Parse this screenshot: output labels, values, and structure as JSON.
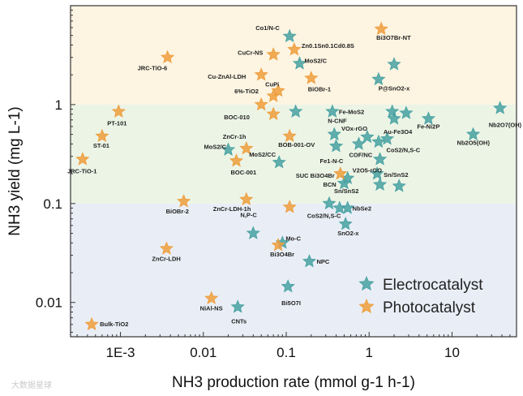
{
  "chart_data": {
    "type": "scatter",
    "xscale": "log",
    "yscale": "log",
    "xlim": [
      0.00025,
      60
    ],
    "ylim": [
      0.0045,
      10
    ],
    "xlabel": "NH3 production rate (mmol g-1 h-1)",
    "ylabel": "NH3 yield (mg L-1)",
    "xticks": [
      {
        "v": 0.001,
        "label": "1E-3"
      },
      {
        "v": 0.01,
        "label": "0.01"
      },
      {
        "v": 0.1,
        "label": "0.1"
      },
      {
        "v": 1,
        "label": "1"
      },
      {
        "v": 10,
        "label": "10"
      }
    ],
    "yticks": [
      {
        "v": 0.01,
        "label": "0.01"
      },
      {
        "v": 0.1,
        "label": "0.1"
      },
      {
        "v": 1,
        "label": "1"
      }
    ],
    "bands": [
      {
        "from": 1,
        "to": 10,
        "color": "#fdf4e1"
      },
      {
        "from": 0.1,
        "to": 1,
        "color": "#ecf4e6"
      },
      {
        "from": 0.0045,
        "to": 0.1,
        "color": "#e9eef6"
      }
    ],
    "legend": {
      "position": "bottom-right",
      "entries": [
        {
          "name": "Electrocatalyst",
          "color": "#47a1a1"
        },
        {
          "name": "Photocatalyst",
          "color": "#ef9d3b"
        }
      ]
    },
    "colors": {
      "electro": "#47a1a1",
      "photo": "#ef9d3b",
      "axis": "#333333",
      "text": "#222222"
    },
    "series": [
      {
        "name": "Electrocatalyst",
        "type": "electro",
        "points": [
          {
            "x": 0.11,
            "y": 4.9,
            "label": "Co1/N-C",
            "ldx": -42,
            "ldy": -8
          },
          {
            "x": 0.145,
            "y": 2.6,
            "label": "MoS2/C",
            "ldx": 6,
            "ldy": -1
          },
          {
            "x": 2.0,
            "y": 2.55
          },
          {
            "x": 1.3,
            "y": 1.8
          },
          {
            "x": 0.13,
            "y": 0.85
          },
          {
            "x": 0.36,
            "y": 0.85,
            "label": "Fe-MoS2",
            "ldx": 8,
            "ldy": 3
          },
          {
            "x": 1.9,
            "y": 0.85,
            "label": "P@SnO2-x",
            "ldx": -17,
            "ldy": -26
          },
          {
            "x": 2.8,
            "y": 0.82
          },
          {
            "x": 2.0,
            "y": 0.72
          },
          {
            "x": 5.2,
            "y": 0.72,
            "label": "Fe-Ni2P",
            "ldx": -14,
            "ldy": 12
          },
          {
            "x": 38,
            "y": 0.92,
            "label": "Nb2O7(OH)",
            "ldx": -14,
            "ldy": 23
          },
          {
            "x": 18,
            "y": 0.5,
            "label": "Nb2O5(OH)",
            "ldx": -20,
            "ldy": 13
          },
          {
            "x": 0.38,
            "y": 0.5,
            "label": "N-CNF",
            "ldx": -8,
            "ldy": -14
          },
          {
            "x": 0.95,
            "y": 0.47,
            "label": "VOx-rGO",
            "ldx": -32,
            "ldy": -8
          },
          {
            "x": 1.3,
            "y": 0.42,
            "label": "Au-Fe3O4",
            "ldx": 6,
            "ldy": -10
          },
          {
            "x": 1.65,
            "y": 0.45
          },
          {
            "x": 0.75,
            "y": 0.4,
            "label": "COF/NC",
            "ldx": -12,
            "ldy": 16
          },
          {
            "x": 0.4,
            "y": 0.38,
            "label": "Fe1-N-C",
            "ldx": -20,
            "ldy": 21
          },
          {
            "x": 1.35,
            "y": 0.28,
            "label": "CoS2/N,S-C",
            "ldx": 8,
            "ldy": -9
          },
          {
            "x": 0.082,
            "y": 0.26,
            "label": "MoS2/CC",
            "ldx": -37,
            "ldy": -7
          },
          {
            "x": 0.55,
            "y": 0.18,
            "label": "V2O5-rGO",
            "ldx": 6,
            "ldy": -7
          },
          {
            "x": 1.25,
            "y": 0.2,
            "label": "Sn/SnS2",
            "ldx": 8,
            "ldy": 4
          },
          {
            "x": 0.5,
            "y": 0.16,
            "label": "BCN",
            "ldx": -26,
            "ldy": 4
          },
          {
            "x": 1.35,
            "y": 0.155
          },
          {
            "x": 2.3,
            "y": 0.15
          },
          {
            "x": 0.33,
            "y": 0.1,
            "label": "Sn/SnS2",
            "ldx": 6,
            "ldy": -13
          },
          {
            "x": 0.55,
            "y": 0.09,
            "label": "NbSe2",
            "ldx": 6,
            "ldy": 3
          },
          {
            "x": 0.44,
            "y": 0.09,
            "label": "CoS2/N,S-C",
            "ldx": -40,
            "ldy": 12
          },
          {
            "x": 0.52,
            "y": 0.062,
            "label": "SnO2-x",
            "ldx": -10,
            "ldy": 14
          },
          {
            "x": 0.04,
            "y": 0.05,
            "label": "N,P-C",
            "ldx": -16,
            "ldy": -20
          },
          {
            "x": 0.09,
            "y": 0.04,
            "label": "Mo-C",
            "ldx": 4,
            "ldy": -3
          },
          {
            "x": 0.19,
            "y": 0.026,
            "label": "NPC",
            "ldx": 9,
            "ldy": 3
          },
          {
            "x": 0.105,
            "y": 0.0145,
            "label": "Bi5O7I",
            "ldx": -8,
            "ldy": 23
          },
          {
            "x": 0.02,
            "y": 0.35,
            "label": "MoS2/C",
            "ldx": -30,
            "ldy": -1
          },
          {
            "x": 0.026,
            "y": 0.009,
            "label": "CNTs",
            "ldx": -8,
            "ldy": 20
          }
        ]
      },
      {
        "name": "Photocatalyst",
        "type": "photo",
        "points": [
          {
            "x": 1.4,
            "y": 5.8,
            "label": "Bi3O7Br-NT",
            "ldx": -6,
            "ldy": 13
          },
          {
            "x": 0.125,
            "y": 3.6,
            "label": "Zn0.1Sn0.1Cd0.8S",
            "ldx": 9,
            "ldy": -2
          },
          {
            "x": 0.07,
            "y": 3.2,
            "label": "CuCr-NS",
            "ldx": -44,
            "ldy": 0
          },
          {
            "x": 0.0037,
            "y": 3.0,
            "label": "JRC-TiO-6",
            "ldx": -37,
            "ldy": 16
          },
          {
            "x": 0.05,
            "y": 2.0,
            "label": "Cu-ZnAl-LDH",
            "ldx": -66,
            "ldy": 5
          },
          {
            "x": 0.2,
            "y": 1.85,
            "label": "BiOBr-1",
            "ldx": -4,
            "ldy": 16
          },
          {
            "x": 0.08,
            "y": 1.38,
            "label": "6%-TiO2",
            "ldx": -54,
            "ldy": 3
          },
          {
            "x": 0.07,
            "y": 1.22,
            "label": "CuPi",
            "ldx": -10,
            "ldy": -12
          },
          {
            "x": 0.05,
            "y": 1.0,
            "label": "BOC-010",
            "ldx": -46,
            "ldy": 18
          },
          {
            "x": 0.07,
            "y": 0.8
          },
          {
            "x": 0.00095,
            "y": 0.85,
            "label": "PT-101",
            "ldx": -14,
            "ldy": 17
          },
          {
            "x": 0.0006,
            "y": 0.48,
            "label": "ST-01",
            "ldx": -11,
            "ldy": 14
          },
          {
            "x": 0.00035,
            "y": 0.28,
            "label": "JRC-TiO-1",
            "ldx": -19,
            "ldy": 17
          },
          {
            "x": 0.11,
            "y": 0.48,
            "label": "BOB-001-OV",
            "ldx": -14,
            "ldy": 13
          },
          {
            "x": 0.033,
            "y": 0.36,
            "label": "ZnCr-1h",
            "ldx": -29,
            "ldy": -12
          },
          {
            "x": 0.025,
            "y": 0.27,
            "label": "BOC-001",
            "ldx": -7,
            "ldy": 17
          },
          {
            "x": 0.45,
            "y": 0.2,
            "label": "SUC Bi3O4Br",
            "ldx": -55,
            "ldy": 5
          },
          {
            "x": 0.0058,
            "y": 0.105,
            "label": "BiOBr-2",
            "ldx": -22,
            "ldy": 15
          },
          {
            "x": 0.033,
            "y": 0.11,
            "label": "ZnCr-LDH-1h",
            "ldx": -41,
            "ldy": 14
          },
          {
            "x": 0.11,
            "y": 0.092
          },
          {
            "x": 0.08,
            "y": 0.038,
            "label": "Bi3O4Br",
            "ldx": -10,
            "ldy": 14
          },
          {
            "x": 0.0036,
            "y": 0.035,
            "label": "ZnCr-LDH",
            "ldx": -18,
            "ldy": 15
          },
          {
            "x": 0.0125,
            "y": 0.011,
            "label": "NiAl-NS",
            "ldx": -14,
            "ldy": 15
          },
          {
            "x": 0.00045,
            "y": 0.006,
            "label": "Bulk-TiO2",
            "ldx": 10,
            "ldy": 2
          }
        ]
      }
    ]
  },
  "watermark": "大数据星球"
}
